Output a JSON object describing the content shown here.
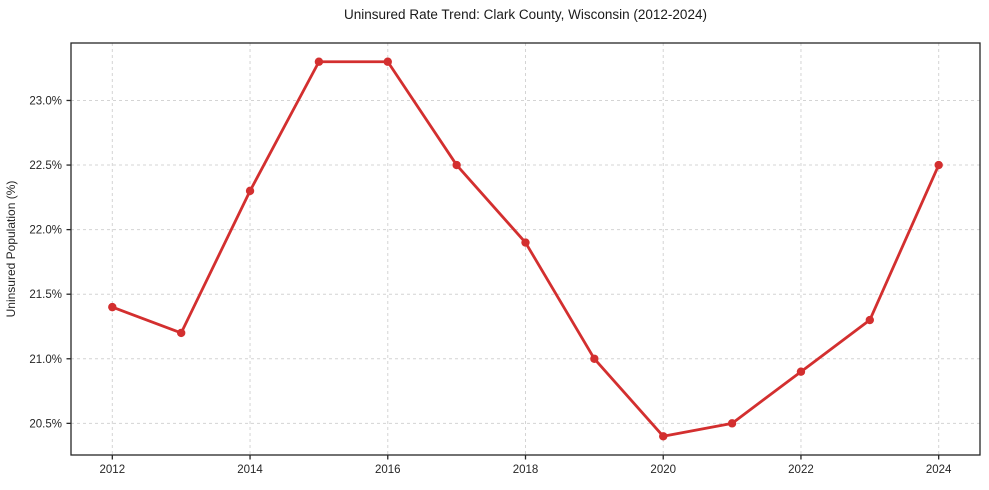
{
  "chart_data": {
    "type": "line",
    "title": "Uninsured Rate Trend: Clark County, Wisconsin (2012-2024)",
    "xlabel": "",
    "ylabel": "Uninsured Population (%)",
    "x": [
      2012,
      2013,
      2014,
      2015,
      2016,
      2017,
      2018,
      2019,
      2020,
      2021,
      2022,
      2023,
      2024
    ],
    "values": [
      21.4,
      21.2,
      22.3,
      23.3,
      23.3,
      22.5,
      21.9,
      21.0,
      20.4,
      20.5,
      20.9,
      21.3,
      22.5
    ],
    "series_name": "Uninsured rate",
    "xlim": [
      2011.4,
      2024.6
    ],
    "ylim": [
      20.255,
      23.445
    ],
    "x_ticks": [
      2012,
      2014,
      2016,
      2018,
      2020,
      2022,
      2024
    ],
    "x_tick_labels": [
      "2012",
      "2014",
      "2016",
      "2018",
      "2020",
      "2022",
      "2024"
    ],
    "y_ticks": [
      20.5,
      21.0,
      21.5,
      22.0,
      22.5,
      23.0
    ],
    "y_tick_labels": [
      "20.5%",
      "21.0%",
      "21.5%",
      "22.0%",
      "22.5%",
      "23.0%"
    ],
    "grid": true,
    "grid_style": "dashed",
    "legend": "none",
    "line_color": "#d32f2f",
    "marker": "circle",
    "background_color": "#ffffff",
    "spine_color": "#262626"
  }
}
